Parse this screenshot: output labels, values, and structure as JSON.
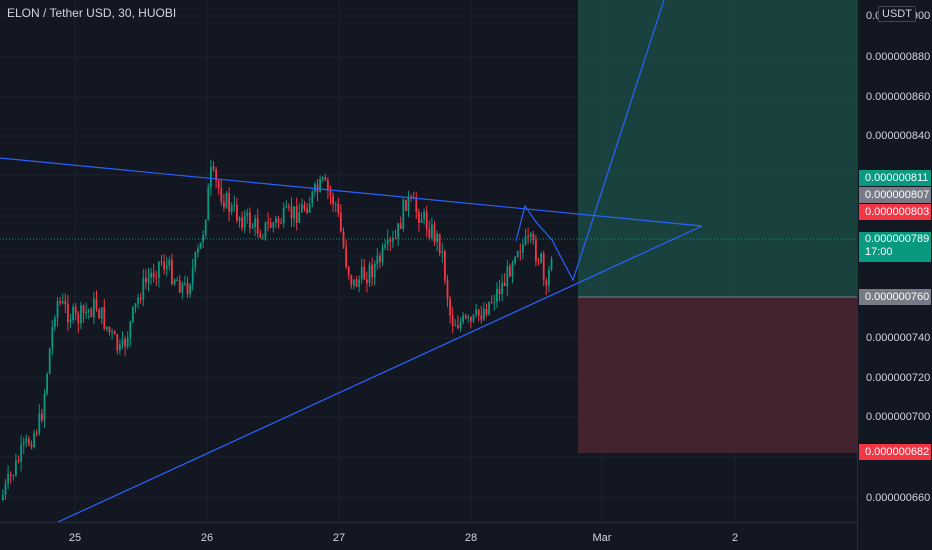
{
  "header": {
    "symbol_title": "ELON / Tether USD, 30, HUOBI",
    "currency_badge": "USDT"
  },
  "price_scale": {
    "ticks": [
      "0.000000880",
      "0.000000860",
      "0.000000840",
      "0.000000740",
      "0.000000720",
      "0.000000700",
      "0.000000660"
    ],
    "top_partial_tick": "0.000000900"
  },
  "price_labels": {
    "target": {
      "text": "0.000000811",
      "color": "#089981"
    },
    "entry_high": {
      "text": "0.000000807",
      "color": "#787b86"
    },
    "red_level": {
      "text": "0.000000803",
      "color": "#f23645"
    },
    "last_price": {
      "text": "0.000000789",
      "countdown": "17:00",
      "color": "#089981"
    },
    "entry": {
      "text": "0.000000760",
      "color": "#787b86"
    },
    "stop": {
      "text": "0.000000682",
      "color": "#f23645"
    }
  },
  "time_scale": {
    "ticks": [
      "25",
      "26",
      "27",
      "28",
      "Mar",
      "2"
    ]
  },
  "drawing": {
    "trendline_color": "#2962ff",
    "profit_zone_color": "#1b4a44",
    "loss_zone_color": "#4c2730",
    "bull_color": "#089981",
    "bear_color": "#f23645"
  }
}
